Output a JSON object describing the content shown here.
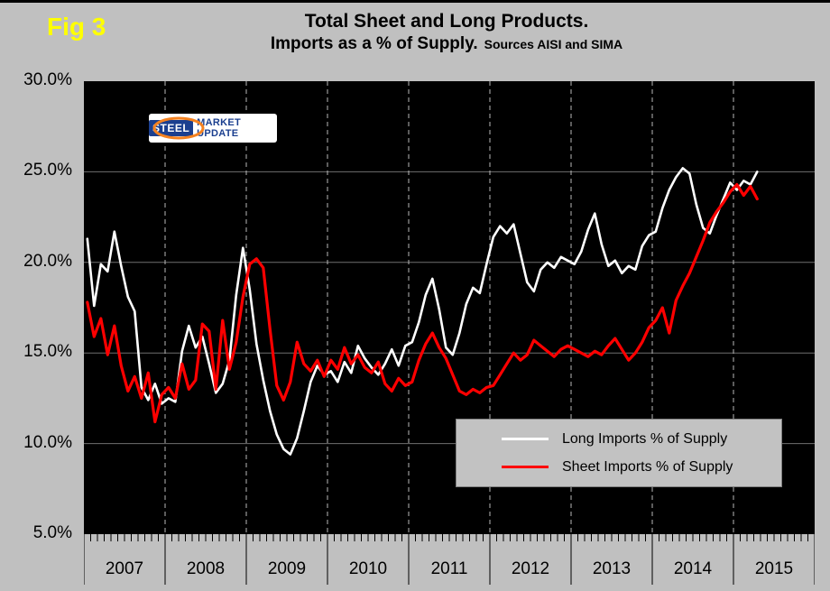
{
  "figure_label": "Fig 3",
  "title": {
    "line1": "Total Sheet and Long Products.",
    "line2": "Imports as a % of Supply.",
    "sources": "Sources AISI and SIMA"
  },
  "logo": {
    "text_primary": "STEEL",
    "text_secondary": "MARKET UPDATE"
  },
  "colors": {
    "page_background": "#c0c0c0",
    "plot_background": "#000000",
    "long_series": "#ffffff",
    "sheet_series": "#ff0000",
    "figure_label": "#ffff00",
    "gridline_horizontal": "#6f6f6f",
    "gridline_vertical_dashed": "#b8b8b8"
  },
  "chart_data": {
    "type": "line",
    "title": "Total Sheet and Long Products. Imports as a % of Supply.",
    "sources": "Sources AISI and SIMA",
    "x_start": "2007-01",
    "x_interval": "monthly",
    "x_axis_years": [
      "2007",
      "2008",
      "2009",
      "2010",
      "2011",
      "2012",
      "2013",
      "2014",
      "2015"
    ],
    "y_ticks": [
      "30.0%",
      "25.0%",
      "20.0%",
      "15.0%",
      "10.0%",
      "5.0%"
    ],
    "y_tick_values": [
      30,
      25,
      20,
      15,
      10,
      5
    ],
    "ylim": [
      5,
      30
    ],
    "grid": {
      "horizontal": true,
      "vertical_dashed_at_year_boundaries": true
    },
    "legend_position": "lower-right-inside",
    "series": [
      {
        "name": "Long Imports % of Supply",
        "color": "#ffffff",
        "stroke_width": 2.6,
        "values": [
          21.3,
          17.6,
          19.9,
          19.5,
          21.7,
          19.8,
          18.1,
          17.3,
          13.1,
          12.4,
          13.3,
          12.2,
          12.5,
          12.3,
          15.1,
          16.5,
          15.3,
          15.9,
          14.4,
          12.8,
          13.3,
          14.6,
          18.2,
          20.8,
          18.5,
          15.5,
          13.5,
          11.8,
          10.5,
          9.7,
          9.4,
          10.3,
          11.8,
          13.4,
          14.3,
          13.8,
          14.0,
          13.4,
          14.5,
          13.9,
          15.4,
          14.7,
          14.2,
          13.8,
          14.4,
          15.2,
          14.3,
          15.4,
          15.6,
          16.7,
          18.2,
          19.1,
          17.4,
          15.3,
          14.9,
          16.1,
          17.7,
          18.6,
          18.3,
          19.9,
          21.4,
          22.0,
          21.6,
          22.1,
          20.5,
          18.9,
          18.4,
          19.6,
          20.0,
          19.7,
          20.3,
          20.1,
          19.9,
          20.6,
          21.8,
          22.7,
          21.0,
          19.8,
          20.1,
          19.4,
          19.8,
          19.6,
          20.9,
          21.5,
          21.7,
          23.0,
          24.0,
          24.7,
          25.2,
          24.9,
          23.2,
          21.9,
          21.6,
          22.6,
          23.5,
          24.4,
          24.0,
          24.5,
          24.3,
          25.0
        ]
      },
      {
        "name": "Sheet Imports % of Supply",
        "color": "#ff0000",
        "stroke_width": 3.2,
        "values": [
          17.8,
          15.9,
          16.9,
          14.9,
          16.5,
          14.3,
          12.9,
          13.7,
          12.5,
          13.9,
          11.2,
          12.7,
          13.1,
          12.5,
          14.4,
          13.0,
          13.5,
          16.6,
          16.2,
          13.0,
          16.8,
          14.1,
          15.6,
          18.1,
          19.9,
          20.2,
          19.7,
          16.3,
          13.2,
          12.4,
          13.4,
          15.6,
          14.4,
          14.0,
          14.6,
          13.7,
          14.6,
          14.1,
          15.3,
          14.4,
          14.9,
          14.2,
          13.9,
          14.5,
          13.3,
          12.9,
          13.6,
          13.2,
          13.4,
          14.6,
          15.5,
          16.1,
          15.3,
          14.7,
          13.8,
          12.9,
          12.7,
          13.0,
          12.8,
          13.1,
          13.2,
          13.8,
          14.4,
          15.0,
          14.6,
          14.9,
          15.7,
          15.4,
          15.1,
          14.8,
          15.2,
          15.4,
          15.2,
          15.0,
          14.8,
          15.1,
          14.9,
          15.4,
          15.8,
          15.2,
          14.6,
          15.0,
          15.6,
          16.4,
          16.8,
          17.5,
          16.1,
          17.9,
          18.7,
          19.4,
          20.3,
          21.2,
          22.2,
          22.8,
          23.3,
          23.9,
          24.3,
          23.7,
          24.2,
          23.5
        ]
      }
    ]
  }
}
